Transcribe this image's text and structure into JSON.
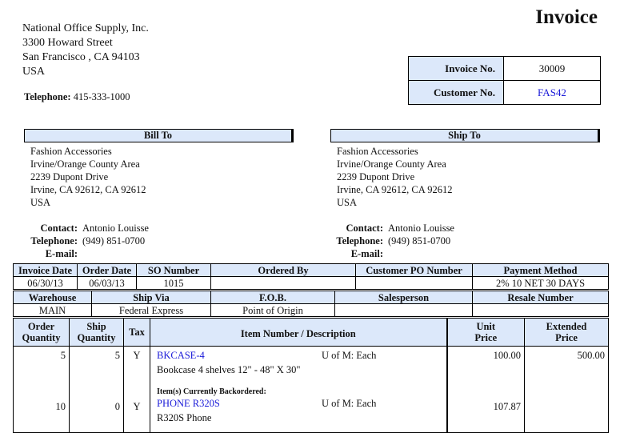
{
  "title": "Invoice",
  "company": {
    "name": "National Office Supply, Inc.",
    "street": "3300 Howard Street",
    "city": "San Francisco , CA 94103",
    "country": "USA",
    "telephone_label": "Telephone:",
    "telephone": "415-333-1000"
  },
  "invoice_box": {
    "invoice_no_label": "Invoice No.",
    "invoice_no": "30009",
    "customer_no_label": "Customer No.",
    "customer_no": "FAS42"
  },
  "bill_to": {
    "header": "Bill To",
    "lines": [
      "Fashion Accessories",
      "Irvine/Orange County Area",
      "2239 Dupont Drive",
      "Irvine, CA 92612, CA 92612",
      "USA"
    ],
    "contact_label": "Contact:",
    "contact": "Antonio Louisse",
    "telephone_label": "Telephone:",
    "telephone": "(949) 851-0700",
    "email_label": "E-mail:",
    "email": ""
  },
  "ship_to": {
    "header": "Ship To",
    "lines": [
      "Fashion Accessories",
      "Irvine/Orange County Area",
      "2239 Dupont Drive",
      "Irvine, CA 92612, CA 92612",
      "USA"
    ],
    "contact_label": "Contact:",
    "contact": "Antonio Louisse",
    "telephone_label": "Telephone:",
    "telephone": "(949) 851-0700",
    "email_label": "E-mail:",
    "email": ""
  },
  "order_info": {
    "headers": [
      "Invoice Date",
      "Order Date",
      "SO Number",
      "Ordered By",
      "Customer PO Number",
      "Payment Method"
    ],
    "values": [
      "06/30/13",
      "06/03/13",
      "1015",
      "",
      "",
      "2% 10 NET 30 DAYS"
    ]
  },
  "ship_info": {
    "headers": [
      "Warehouse",
      "Ship Via",
      "F.O.B.",
      "Salesperson",
      "Resale Number"
    ],
    "values": [
      "MAIN",
      "Federal Express",
      "Point of Origin",
      "",
      ""
    ]
  },
  "items": {
    "headers": {
      "order_qty_1": "Order",
      "order_qty_2": "Quantity",
      "ship_qty_1": "Ship",
      "ship_qty_2": "Quantity",
      "tax": "Tax",
      "item": "Item Number / Description",
      "unit_1": "Unit",
      "unit_2": "Price",
      "ext_1": "Extended",
      "ext_2": "Price"
    },
    "backorder_label": "Item(s) Currently Backordered:",
    "rows": [
      {
        "order_qty": "5",
        "ship_qty": "5",
        "tax": "Y",
        "item_number": "BKCASE-4",
        "uom": "U of M: Each",
        "description": "Bookcase 4 shelves 12\" - 48\" X 30\"",
        "unit_price": "100.00",
        "extended_price": "500.00"
      },
      {
        "order_qty": "10",
        "ship_qty": "0",
        "tax": "Y",
        "item_number": "PHONE R320S",
        "uom": "U of M: Each",
        "description": "R320S Phone",
        "unit_price": "107.87",
        "extended_price": ""
      }
    ]
  },
  "colors": {
    "header_bg": "#dce8fa",
    "link": "#1a1ad8"
  }
}
